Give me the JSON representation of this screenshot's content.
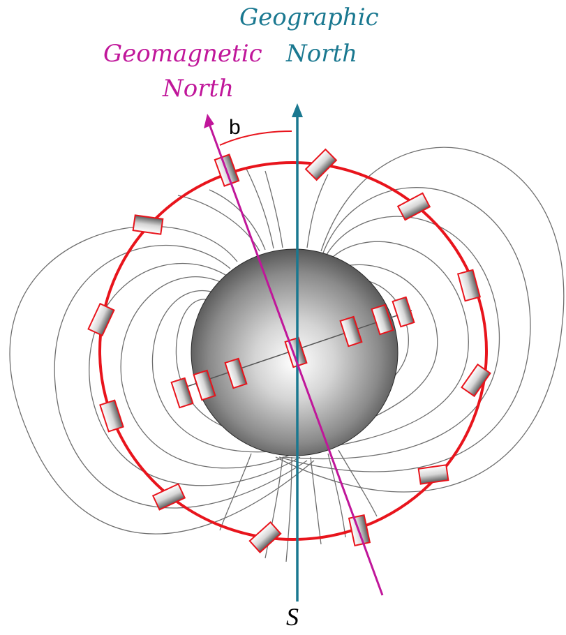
{
  "labels": {
    "geographic_line1": "Geographic",
    "geographic_line2": "North",
    "geomagnetic_line1": "Geomagnetic",
    "geomagnetic_line2": "North",
    "angle": "b",
    "south": "S"
  },
  "colors": {
    "geographic_axis": "#1a7890",
    "geomagnetic_axis": "#c0169a",
    "compass_ring": "#e8141c",
    "field_lines": "#6e6e6e",
    "needle_outline": "#e8141c"
  }
}
